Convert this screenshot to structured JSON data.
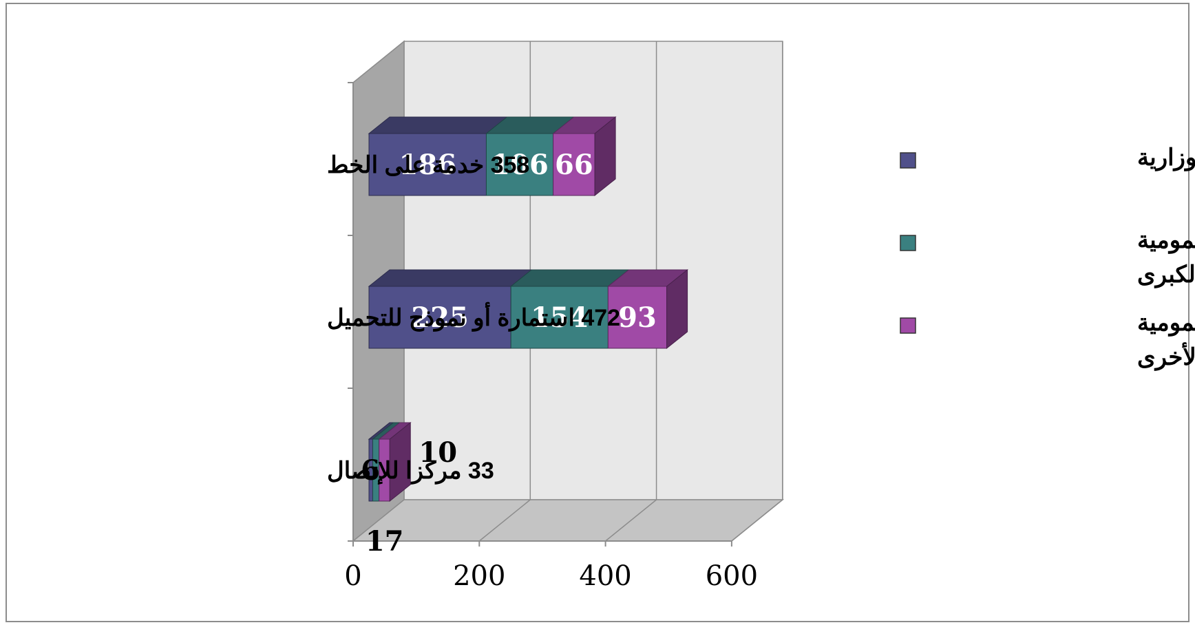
{
  "chart_data": {
    "type": "bar",
    "orientation": "horizontal",
    "stacked": true,
    "three_d": true,
    "categories": [
      "358 خدمة على الخط",
      "472 استمارة أو نموذج للتحميل",
      "33 مركزا للإتصال"
    ],
    "series": [
      {
        "name": "القطاعات الوزارية",
        "values": [
          186,
          225,
          6
        ],
        "color": "#50508a"
      },
      {
        "name": "المؤسسات العمومية الكبرى",
        "values": [
          106,
          154,
          10
        ],
        "color": "#3a8080"
      },
      {
        "name": "المؤسسات العمومية الأخرى",
        "values": [
          66,
          93,
          17
        ],
        "color": "#a04aa6"
      }
    ],
    "xlim": [
      0,
      600
    ],
    "x_ticks": [
      "0",
      "200",
      "400",
      "600"
    ],
    "grid": true,
    "legend_position": "right",
    "colors": {
      "wall": "#e8e8e8",
      "side_wall": "#a6a6a6",
      "floor": "#c4c4c4",
      "gridline": "#8c8c8c",
      "frame": "#8c8c8c"
    }
  }
}
